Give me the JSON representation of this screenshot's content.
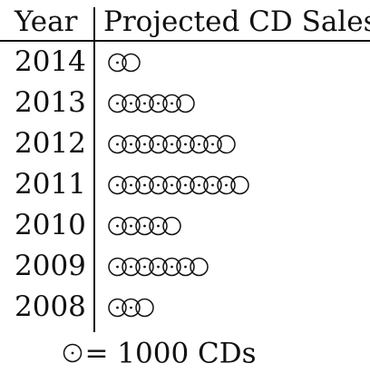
{
  "chart_data": {
    "type": "pictograph",
    "columns": [
      "Year",
      "Projected CD Sales"
    ],
    "categories": [
      "2014",
      "2013",
      "2012",
      "2011",
      "2010",
      "2009",
      "2008"
    ],
    "values": [
      1500,
      5500,
      8500,
      9500,
      4500,
      6500,
      2500
    ],
    "key": {
      "symbol": "circle-dot-icon",
      "value": 1000,
      "text": "= 1000 CDs"
    },
    "unit": "CDs"
  }
}
